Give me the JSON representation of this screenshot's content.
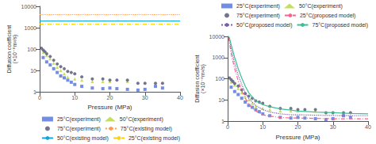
{
  "chart_data": [
    {
      "type": "scatter",
      "xlabel": "Pressure (MPa)",
      "ylabel": "Diffusion coefficient\n(×10⁻⁸m²/s)",
      "xlim": [
        0,
        40
      ],
      "xticks": [
        0,
        10,
        20,
        30,
        40
      ],
      "ylim": [
        1,
        10000
      ],
      "yticks": [
        1,
        10,
        100,
        1000,
        10000
      ],
      "log": "y",
      "grid": false,
      "legend": "lower right",
      "series": [
        {
          "name": "25°C(experiment)",
          "type": "scatter",
          "marker": "square",
          "x": [
            1,
            2,
            3,
            4,
            5,
            6,
            7,
            8,
            9,
            10,
            12,
            15,
            18,
            20,
            22,
            25,
            28,
            30,
            33,
            35
          ],
          "values": [
            40,
            25,
            18,
            12,
            8,
            5.5,
            4.5,
            3.5,
            2.8,
            2.2,
            1.8,
            1.5,
            1.4,
            1.5,
            1.4,
            1.3,
            1.2,
            1.3,
            1.8,
            1.5
          ]
        },
        {
          "name": "50°C(experiment)",
          "type": "scatter",
          "marker": "triangle",
          "x": [
            1,
            2,
            3,
            4,
            5,
            6,
            7,
            8,
            10,
            12,
            15,
            18,
            20,
            25
          ],
          "values": [
            70,
            50,
            35,
            22,
            14,
            10,
            7,
            5,
            4,
            3.5,
            3,
            3,
            3,
            3
          ]
        },
        {
          "name": "75°C(experiment)",
          "type": "scatter",
          "marker": "circle",
          "x": [
            0.5,
            1,
            1.5,
            2,
            3,
            4,
            5,
            6,
            7,
            8,
            9,
            10,
            12,
            15,
            18,
            20,
            22,
            25,
            28,
            30,
            33,
            35
          ],
          "values": [
            110,
            90,
            75,
            60,
            45,
            30,
            20,
            15,
            12,
            9,
            8,
            7,
            5,
            4,
            4,
            3.5,
            3.5,
            3.5,
            2.5,
            2.5,
            2.5,
            2.5
          ]
        },
        {
          "name": "75°C(existing model)",
          "type": "hline",
          "line_style": "dotted",
          "values": [
            4200
          ]
        },
        {
          "name": "50°C(existing model)",
          "type": "hline",
          "line_style": "solid",
          "values": [
            2100
          ]
        },
        {
          "name": "25°C(existing model)",
          "type": "hline",
          "line_style": "dashdot",
          "values": [
            1500
          ]
        }
      ]
    },
    {
      "type": "scatter",
      "xlabel": "Pressure (MPa)",
      "ylabel": "Diffusion coefficient\n(×10⁻⁸m²/s)",
      "xlim": [
        0,
        40
      ],
      "xticks": [
        0,
        10,
        20,
        30,
        40
      ],
      "ylim": [
        1,
        10000
      ],
      "yticks": [
        1,
        10,
        100,
        1000,
        10000
      ],
      "log": "y",
      "grid": false,
      "legend": "upper right",
      "series": [
        {
          "name": "25°C(experiment)",
          "type": "scatter",
          "marker": "square",
          "x": [
            1,
            2,
            3,
            4,
            5,
            6,
            7,
            8,
            9,
            10,
            12,
            15,
            18,
            20,
            22,
            25,
            28,
            30,
            33,
            35
          ],
          "values": [
            40,
            25,
            18,
            12,
            8,
            5.5,
            4.5,
            3.5,
            2.8,
            2.2,
            1.8,
            1.5,
            1.4,
            1.5,
            1.4,
            1.3,
            1.2,
            1.3,
            1.8,
            1.5
          ]
        },
        {
          "name": "50°C(experiment)",
          "type": "scatter",
          "marker": "triangle",
          "x": [
            1,
            2,
            3,
            4,
            5,
            6,
            7,
            8,
            10,
            12,
            15,
            18,
            20,
            25
          ],
          "values": [
            70,
            50,
            35,
            22,
            14,
            10,
            7,
            5,
            4,
            3.5,
            3,
            3,
            3,
            3
          ]
        },
        {
          "name": "75°C(experiment)",
          "type": "scatter",
          "marker": "circle",
          "x": [
            0.5,
            1,
            1.5,
            2,
            3,
            4,
            5,
            6,
            7,
            8,
            9,
            10,
            12,
            15,
            18,
            20,
            22,
            25,
            28,
            30,
            33,
            35
          ],
          "values": [
            110,
            90,
            75,
            60,
            45,
            30,
            20,
            15,
            12,
            9,
            8,
            7,
            5,
            4,
            4,
            3.5,
            3.5,
            3.5,
            2.5,
            2.5,
            2.5,
            2.5
          ]
        },
        {
          "name": "25°C(proposed model)",
          "type": "line",
          "line_style": "dashdot",
          "x": [
            0.3,
            0.5,
            1,
            2,
            3,
            4,
            5,
            6,
            7,
            8,
            10,
            12,
            15,
            18,
            20,
            25,
            30,
            35,
            40
          ],
          "values": [
            9000,
            5000,
            1500,
            300,
            80,
            28,
            12,
            6.5,
            4.2,
            3.0,
            2.0,
            1.7,
            1.5,
            1.4,
            1.4,
            1.35,
            1.3,
            1.3,
            1.3
          ]
        },
        {
          "name": "50°C(proposed model)",
          "type": "line",
          "line_style": "dotted",
          "x": [
            0.3,
            0.5,
            1,
            2,
            3,
            4,
            5,
            6,
            7,
            8,
            10,
            12,
            15,
            18,
            20,
            25,
            30,
            35,
            40
          ],
          "values": [
            9500,
            7000,
            2500,
            550,
            150,
            55,
            22,
            12,
            8,
            5.5,
            3.5,
            2.7,
            2.2,
            2.0,
            2.0,
            1.9,
            1.85,
            1.8,
            1.8
          ]
        },
        {
          "name": "75°C(proposed model)",
          "type": "line",
          "line_style": "solid",
          "x": [
            0.3,
            0.5,
            1,
            2,
            3,
            4,
            5,
            6,
            7,
            8,
            10,
            12,
            15,
            18,
            20,
            25,
            30,
            35,
            40
          ],
          "values": [
            9800,
            8500,
            4000,
            1000,
            300,
            110,
            45,
            22,
            14,
            9,
            6,
            4.8,
            3.8,
            3.3,
            3.0,
            2.7,
            2.5,
            2.3,
            2.2
          ]
        }
      ]
    }
  ]
}
